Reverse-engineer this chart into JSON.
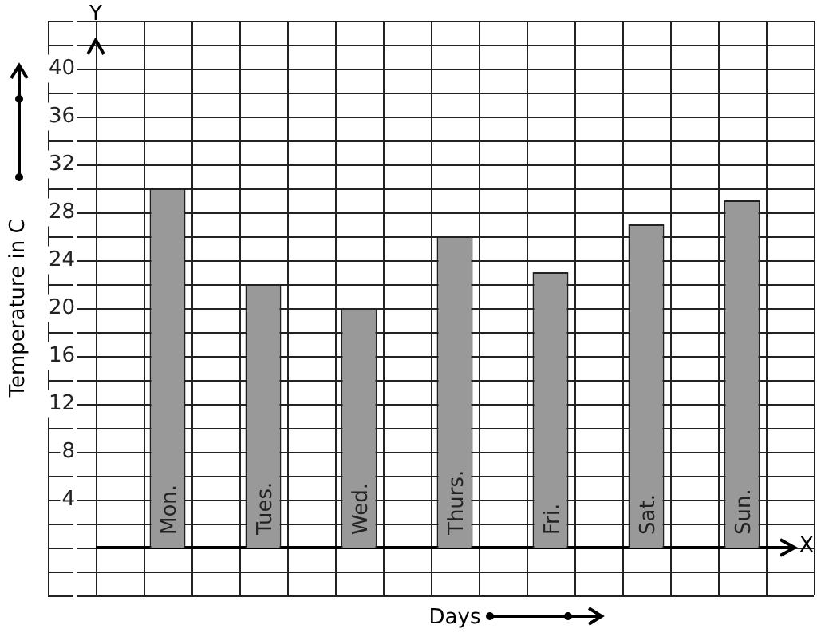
{
  "chart_data": {
    "type": "bar",
    "categories": [
      "Mon.",
      "Tues.",
      "Wed.",
      "Thurs.",
      "Fri.",
      "Sat.",
      "Sun."
    ],
    "values": [
      30,
      22,
      20,
      26,
      23,
      27,
      29
    ],
    "color": "#999999",
    "xlabel": "Days",
    "ylabel": "Temperature in C",
    "annotations": [
      "Y",
      "X"
    ],
    "ylim": [
      -4,
      44
    ],
    "yticks": [
      {
        "value": -4,
        "label": null
      },
      {
        "value": -2,
        "label": null
      },
      {
        "value": 0,
        "label": null
      },
      {
        "value": 2,
        "label": null
      },
      4,
      {
        "value": 6,
        "label": null
      },
      8,
      {
        "value": 10,
        "label": null
      },
      12,
      {
        "value": 14,
        "label": null
      },
      16,
      {
        "value": 18,
        "label": null
      },
      20,
      {
        "value": 22,
        "label": null
      },
      24,
      {
        "value": 26,
        "label": null
      },
      28,
      {
        "value": 30,
        "label": null
      },
      32,
      {
        "value": 34,
        "label": null
      },
      36,
      {
        "value": 38,
        "label": null
      },
      40,
      {
        "value": 42,
        "label": null
      },
      {
        "value": 44,
        "label": null
      }
    ],
    "grid": true
  }
}
